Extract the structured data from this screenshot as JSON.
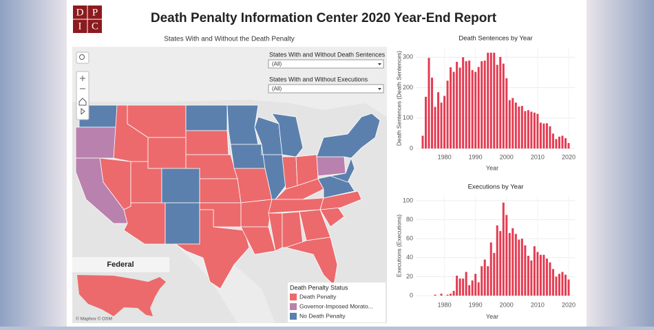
{
  "header": {
    "logo_letters": [
      "D",
      "P",
      "I",
      "C"
    ],
    "title": "Death Penalty Information Center  2020 Year-End Report"
  },
  "map": {
    "title": "States With and Without the Death Penalty",
    "filters": [
      {
        "label": "States With and Without Death Sentences",
        "value": "(All)"
      },
      {
        "label": "States With and Without Executions",
        "value": "(All)"
      }
    ],
    "federal_label": "Federal",
    "legend": {
      "title": "Death Penalty Status",
      "items": [
        {
          "label": "Death Penalty",
          "color": "#ec6a6c"
        },
        {
          "label": "Governor-Imposed Morato...",
          "color": "#b982ae"
        },
        {
          "label": "No Death Penalty",
          "color": "#5b80ad"
        }
      ]
    },
    "attribution": "© Mapbox © OSM"
  },
  "chart_data": [
    {
      "type": "bar",
      "title": "Death Sentences by Year",
      "xlabel": "Year",
      "ylabel": "Death Sentences (Death Sentences)",
      "color": "#e33b51",
      "grid": true,
      "x": [
        1973,
        1974,
        1975,
        1976,
        1977,
        1978,
        1979,
        1980,
        1981,
        1982,
        1983,
        1984,
        1985,
        1986,
        1987,
        1988,
        1989,
        1990,
        1991,
        1992,
        1993,
        1994,
        1995,
        1996,
        1997,
        1998,
        1999,
        2000,
        2001,
        2002,
        2003,
        2004,
        2005,
        2006,
        2007,
        2008,
        2009,
        2010,
        2011,
        2012,
        2013,
        2014,
        2015,
        2016,
        2017,
        2018,
        2019,
        2020
      ],
      "values": [
        42,
        170,
        298,
        233,
        137,
        185,
        151,
        173,
        223,
        267,
        252,
        285,
        266,
        300,
        287,
        289,
        258,
        252,
        268,
        287,
        289,
        315,
        315,
        315,
        275,
        301,
        279,
        231,
        159,
        166,
        151,
        138,
        140,
        123,
        126,
        121,
        118,
        114,
        85,
        82,
        83,
        73,
        49,
        31,
        39,
        42,
        34,
        18
      ],
      "xlim": [
        1971,
        2022
      ],
      "ylim": [
        0,
        330
      ],
      "xticks": [
        1980,
        1990,
        2000,
        2010,
        2020
      ],
      "yticks": [
        0,
        100,
        200,
        300
      ]
    },
    {
      "type": "bar",
      "title": "Executions by Year",
      "xlabel": "Year",
      "ylabel": "Executions (Executions)",
      "color": "#e33b51",
      "grid": true,
      "x": [
        1977,
        1978,
        1979,
        1980,
        1981,
        1982,
        1983,
        1984,
        1985,
        1986,
        1987,
        1988,
        1989,
        1990,
        1991,
        1992,
        1993,
        1994,
        1995,
        1996,
        1997,
        1998,
        1999,
        2000,
        2001,
        2002,
        2003,
        2004,
        2005,
        2006,
        2007,
        2008,
        2009,
        2010,
        2011,
        2012,
        2013,
        2014,
        2015,
        2016,
        2017,
        2018,
        2019,
        2020
      ],
      "values": [
        1,
        0,
        2,
        0,
        1,
        2,
        5,
        21,
        18,
        18,
        25,
        11,
        16,
        23,
        14,
        31,
        38,
        31,
        56,
        45,
        74,
        68,
        98,
        85,
        66,
        71,
        65,
        59,
        60,
        53,
        42,
        37,
        52,
        46,
        43,
        43,
        39,
        35,
        28,
        20,
        23,
        25,
        22,
        17
      ],
      "xlim": [
        1971,
        2022
      ],
      "ylim": [
        0,
        105
      ],
      "xticks": [
        1980,
        1990,
        2000,
        2010,
        2020
      ],
      "yticks": [
        0,
        20,
        40,
        60,
        80,
        100
      ]
    }
  ]
}
